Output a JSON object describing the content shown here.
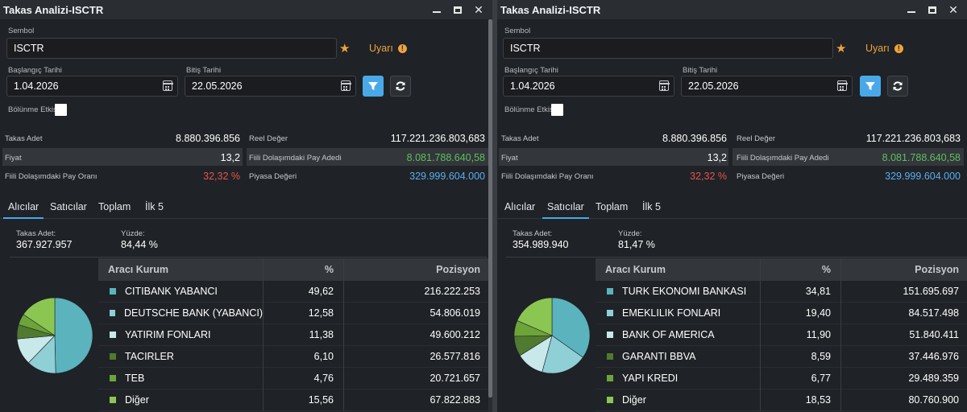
{
  "windows": [
    {
      "title": "Takas Analizi-ISCTR",
      "sembol_label": "Sembol",
      "sembol_value": "ISCTR",
      "uyari_label": "Uyarı",
      "baslangic_label": "Başlangıç Tarihi",
      "baslangic_value": "1.04.2026",
      "bitis_label": "Bitiş Tarihi",
      "bitis_value": "22.05.2026",
      "bolunme_label": "Bölünme Etkisi",
      "stats": {
        "takas_adet_label": "Takas Adet",
        "takas_adet_value": "8.880.396.856",
        "reel_deger_label": "Reel Değer",
        "reel_deger_value": "117.221.236.803,683",
        "fiyat_label": "Fiyat",
        "fiyat_value": "13,2",
        "fiili_pay_adedi_label": "Fiili Dolaşımdaki Pay Adedi",
        "fiili_pay_adedi_value": "8.081.788.640,58",
        "fiili_pay_orani_label": "Fiili Dolaşımdaki Pay Oranı",
        "fiili_pay_orani_value": "32,32 %",
        "piyasa_degeri_label": "Piyasa Değeri",
        "piyasa_degeri_value": "329.999.604.000"
      },
      "tabs": [
        "Alıcılar",
        "Satıcılar",
        "Toplam",
        "İlk 5"
      ],
      "active_tab": 0,
      "summary": {
        "takas_adet_label": "Takas Adet:",
        "takas_adet_value": "367.927.957",
        "yuzde_label": "Yüzde:",
        "yuzde_value": "84,44 %"
      },
      "table": {
        "headers": [
          "Aracı Kurum",
          "%",
          "Pozisyon"
        ],
        "rows": [
          {
            "name": "CITIBANK YABANCI",
            "pct": "49,62",
            "pos": "216.222.253",
            "color": "#5ab3bd",
            "value": 49.62
          },
          {
            "name": "DEUTSCHE BANK (YABANCI)",
            "pct": "12,58",
            "pos": "54.806.019",
            "color": "#8fcfd6",
            "value": 12.58
          },
          {
            "name": "YATIRIM FONLARI",
            "pct": "11,38",
            "pos": "49.600.212",
            "color": "#c9e8ea",
            "value": 11.38
          },
          {
            "name": "TACIRLER",
            "pct": "6,10",
            "pos": "26.577.816",
            "color": "#4f7a2f",
            "value": 6.1
          },
          {
            "name": "TEB",
            "pct": "4,76",
            "pos": "20.721.657",
            "color": "#6da43a",
            "value": 4.76
          },
          {
            "name": "Diğer",
            "pct": "15,56",
            "pos": "67.822.883",
            "color": "#8cc652",
            "value": 15.56
          }
        ]
      }
    },
    {
      "title": "Takas Analizi-ISCTR",
      "sembol_label": "Sembol",
      "sembol_value": "ISCTR",
      "uyari_label": "Uyarı",
      "baslangic_label": "Başlangıç Tarihi",
      "baslangic_value": "1.04.2026",
      "bitis_label": "Bitiş Tarihi",
      "bitis_value": "22.05.2026",
      "bolunme_label": "Bölünme Etkisi",
      "stats": {
        "takas_adet_label": "Takas Adet",
        "takas_adet_value": "8.880.396.856",
        "reel_deger_label": "Reel Değer",
        "reel_deger_value": "117.221.236.803,683",
        "fiyat_label": "Fiyat",
        "fiyat_value": "13,2",
        "fiili_pay_adedi_label": "Fiili Dolaşımdaki Pay Adedi",
        "fiili_pay_adedi_value": "8.081.788.640,58",
        "fiili_pay_orani_label": "Fiili Dolaşımdaki Pay Oranı",
        "fiili_pay_orani_value": "32,32 %",
        "piyasa_degeri_label": "Piyasa Değeri",
        "piyasa_degeri_value": "329.999.604.000"
      },
      "tabs": [
        "Alıcılar",
        "Satıcılar",
        "Toplam",
        "İlk 5"
      ],
      "active_tab": 1,
      "summary": {
        "takas_adet_label": "Takas Adet:",
        "takas_adet_value": "354.989.940",
        "yuzde_label": "Yüzde:",
        "yuzde_value": "81,47 %"
      },
      "table": {
        "headers": [
          "Aracı Kurum",
          "%",
          "Pozisyon"
        ],
        "rows": [
          {
            "name": "TURK EKONOMI BANKASI",
            "pct": "34,81",
            "pos": "151.695.697",
            "color": "#5ab3bd",
            "value": 34.81
          },
          {
            "name": "EMEKLILIK FONLARI",
            "pct": "19,40",
            "pos": "84.517.498",
            "color": "#8fcfd6",
            "value": 19.4
          },
          {
            "name": "BANK OF AMERICA",
            "pct": "11,90",
            "pos": "51.840.411",
            "color": "#c9e8ea",
            "value": 11.9
          },
          {
            "name": "GARANTI BBVA",
            "pct": "8,59",
            "pos": "37.446.976",
            "color": "#4f7a2f",
            "value": 8.59
          },
          {
            "name": "YAPI KREDI",
            "pct": "6,77",
            "pos": "29.489.359",
            "color": "#6da43a",
            "value": 6.77
          },
          {
            "name": "Diğer",
            "pct": "18,53",
            "pos": "80.760.900",
            "color": "#8cc652",
            "value": 18.53
          }
        ]
      }
    }
  ]
}
